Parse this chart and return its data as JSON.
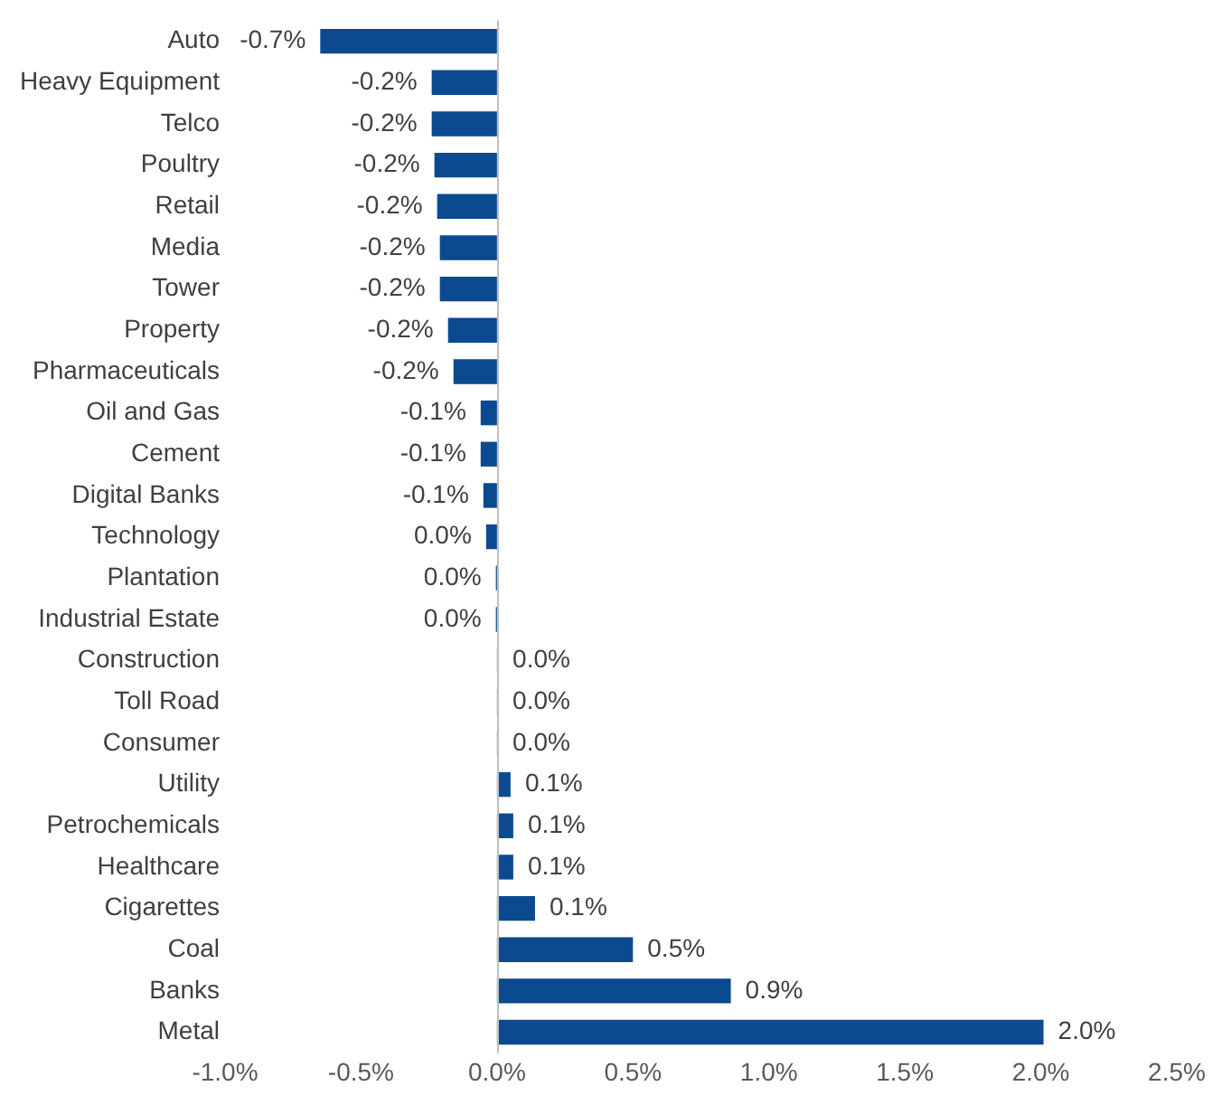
{
  "chart_data": {
    "type": "bar",
    "orientation": "horizontal",
    "categories": [
      "Auto",
      "Heavy Equipment",
      "Telco",
      "Poultry",
      "Retail",
      "Media",
      "Tower",
      "Property",
      "Pharmaceuticals",
      "Oil and Gas",
      "Cement",
      "Digital Banks",
      "Technology",
      "Plantation",
      "Industrial Estate",
      "Construction",
      "Toll Road",
      "Consumer",
      "Utility",
      "Petrochemicals",
      "Healthcare",
      "Cigarettes",
      "Coal",
      "Banks",
      "Metal"
    ],
    "values": [
      -0.65,
      -0.24,
      -0.24,
      -0.23,
      -0.22,
      -0.21,
      -0.21,
      -0.18,
      -0.16,
      -0.06,
      -0.06,
      -0.05,
      -0.04,
      -0.004,
      -0.004,
      0.004,
      0.004,
      0.004,
      0.05,
      0.06,
      0.06,
      0.14,
      0.5,
      0.86,
      2.01
    ],
    "value_labels": [
      "-0.7%",
      "-0.2%",
      "-0.2%",
      "-0.2%",
      "-0.2%",
      "-0.2%",
      "-0.2%",
      "-0.2%",
      "-0.2%",
      "-0.1%",
      "-0.1%",
      "-0.1%",
      "0.0%",
      "0.0%",
      "0.0%",
      "0.0%",
      "0.0%",
      "0.0%",
      "0.1%",
      "0.1%",
      "0.1%",
      "0.1%",
      "0.5%",
      "0.9%",
      "2.0%"
    ],
    "color": "#0b4a8f",
    "xlim": [
      -1.0,
      2.5
    ],
    "xticks": [
      {
        "value": -1.0,
        "label": "-1.0%"
      },
      {
        "value": -0.5,
        "label": "-0.5%"
      },
      {
        "value": 0,
        "label": "0.0%"
      },
      {
        "value": 0.5,
        "label": "0.5%"
      },
      {
        "value": 1.0,
        "label": "1.0%"
      },
      {
        "value": 1.5,
        "label": "1.5%"
      },
      {
        "value": 2.0,
        "label": "2.0%"
      },
      {
        "value": 2.5,
        "label": "2.5%"
      }
    ],
    "ref_lines": [
      {
        "axis": "x",
        "value": 0,
        "color": "#bfbfbf"
      }
    ],
    "grid": false,
    "legend": false
  }
}
